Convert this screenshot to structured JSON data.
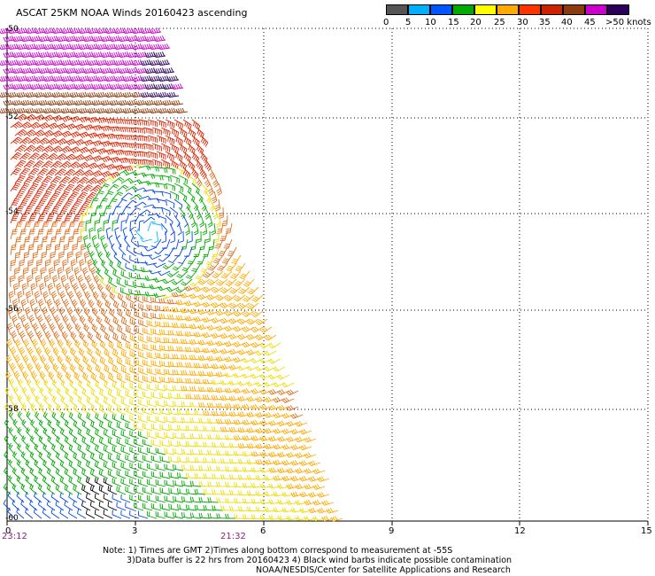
{
  "title": "ASCAT 25KM NOAA Winds 20160423 ascending",
  "legend": {
    "labels": [
      "0",
      "5",
      "10",
      "15",
      "20",
      "25",
      "30",
      "35",
      "40",
      "45",
      ">50 knots"
    ],
    "colors": [
      "#555555",
      "#00b0ff",
      "#0055ff",
      "#00aa00",
      "#ffff00",
      "#ffaa00",
      "#ff3300",
      "#cc2200",
      "#8a3b10",
      "#cc00cc",
      "#000080"
    ]
  },
  "axes": {
    "lon_ticks": [
      "0",
      "3",
      "6",
      "9",
      "12",
      "15"
    ],
    "lat_ticks": [
      "-50",
      "-52",
      "-54",
      "-56",
      "-58",
      "-60"
    ]
  },
  "times": [
    "23:12",
    "21:32"
  ],
  "notes": [
    "Note: 1) Times are GMT 2)Times along bottom correspond to measurement at -55S",
    "3)Data buffer is 22 hrs from 20160423 4) Black wind barbs indicate possible contamination",
    "NOAA/NESDIS/Center for Satellite Applications and Research"
  ]
}
